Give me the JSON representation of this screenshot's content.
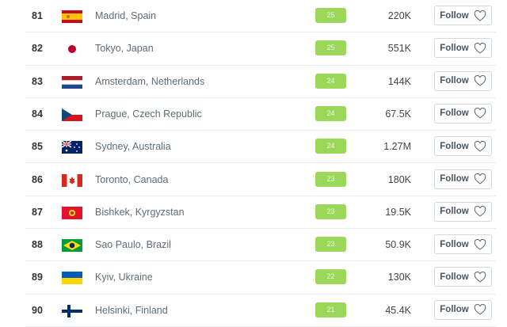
{
  "colors": {
    "badge": "#9bd85a",
    "follow_border": "#d4d8dd"
  },
  "follow_label": "Follow",
  "rows": [
    {
      "rank": "81",
      "city": "Madrid, Spain",
      "flag": "spain-flag-icon",
      "score": "25",
      "followers": "220K"
    },
    {
      "rank": "82",
      "city": "Tokyo, Japan",
      "flag": "japan-flag-icon",
      "score": "25",
      "followers": "551K"
    },
    {
      "rank": "83",
      "city": "Amsterdam, Netherlands",
      "flag": "netherlands-flag-icon",
      "score": "24",
      "followers": "144K"
    },
    {
      "rank": "84",
      "city": "Prague, Czech Republic",
      "flag": "czech-flag-icon",
      "score": "24",
      "followers": "67.5K"
    },
    {
      "rank": "85",
      "city": "Sydney, Australia",
      "flag": "australia-flag-icon",
      "score": "24",
      "followers": "1.27M"
    },
    {
      "rank": "86",
      "city": "Toronto, Canada",
      "flag": "canada-flag-icon",
      "score": "23",
      "followers": "180K"
    },
    {
      "rank": "87",
      "city": "Bishkek, Kyrgyzstan",
      "flag": "kyrgyzstan-flag-icon",
      "score": "23",
      "followers": "19.5K"
    },
    {
      "rank": "88",
      "city": "Sao Paulo, Brazil",
      "flag": "brazil-flag-icon",
      "score": "23",
      "followers": "50.9K"
    },
    {
      "rank": "89",
      "city": "Kyiv, Ukraine",
      "flag": "ukraine-flag-icon",
      "score": "22",
      "followers": "130K"
    },
    {
      "rank": "90",
      "city": "Helsinki, Finland",
      "flag": "finland-flag-icon",
      "score": "21",
      "followers": "45.4K"
    }
  ]
}
